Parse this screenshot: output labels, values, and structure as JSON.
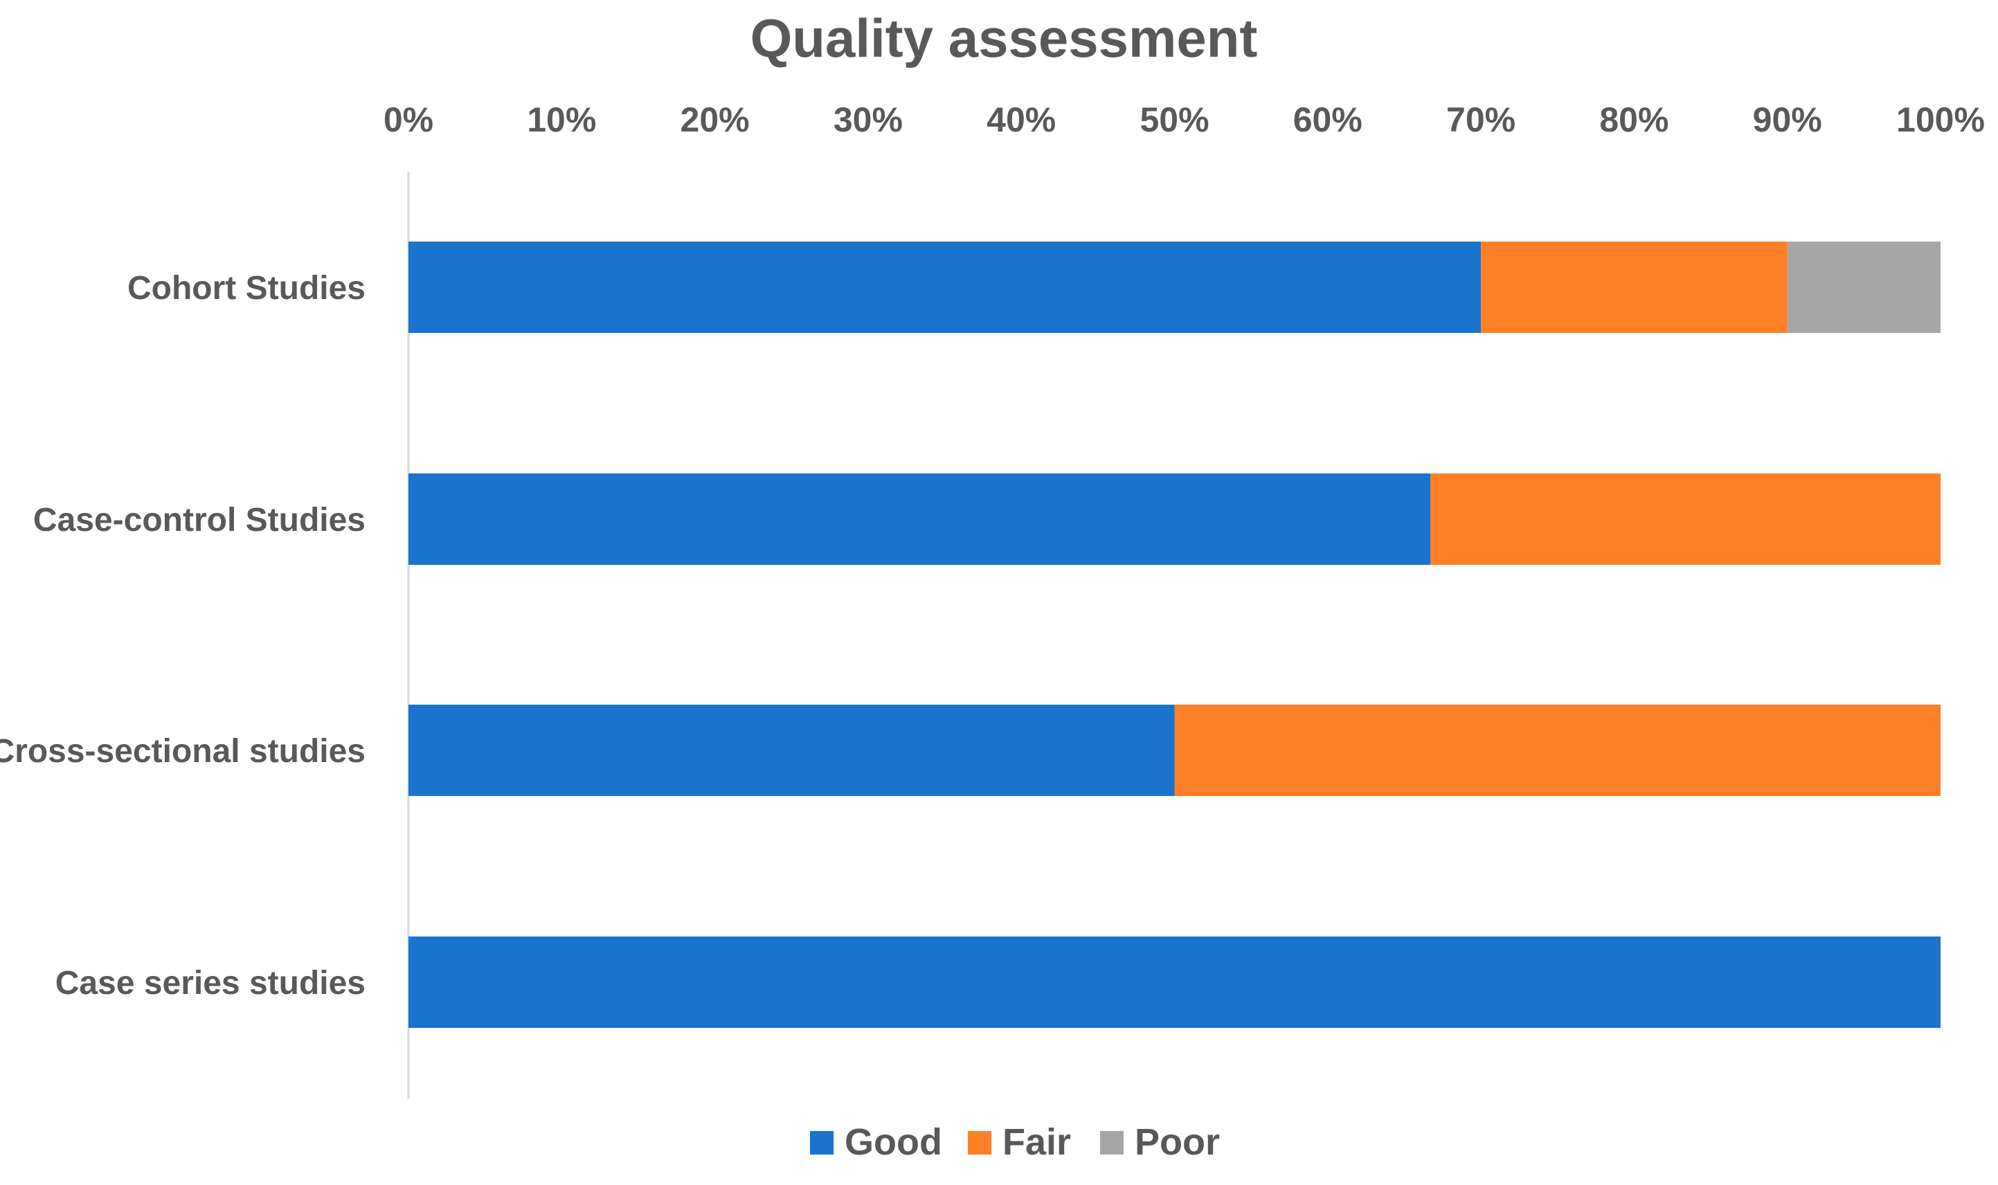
{
  "chart_data": {
    "type": "bar",
    "orientation": "horizontal",
    "stacked": true,
    "title": "Quality assessment",
    "xlabel": "",
    "ylabel": "",
    "xlim": [
      0,
      100
    ],
    "x_ticks": [
      "0%",
      "10%",
      "20%",
      "30%",
      "40%",
      "50%",
      "60%",
      "70%",
      "80%",
      "90%",
      "100%"
    ],
    "x_axis_position": "top",
    "grid": false,
    "legend_position": "bottom",
    "categories": [
      "Cohort Studies",
      "Case-control Studies",
      "Cross-sectional studies",
      "Case series studies"
    ],
    "series": [
      {
        "name": "Good",
        "color": "#1874CD",
        "values": [
          70,
          66.7,
          50,
          100
        ]
      },
      {
        "name": "Fair",
        "color": "#FF7F27",
        "values": [
          20,
          33.3,
          50,
          0
        ]
      },
      {
        "name": "Poor",
        "color": "#A6A6A6",
        "values": [
          10,
          0,
          0,
          0
        ]
      }
    ]
  }
}
